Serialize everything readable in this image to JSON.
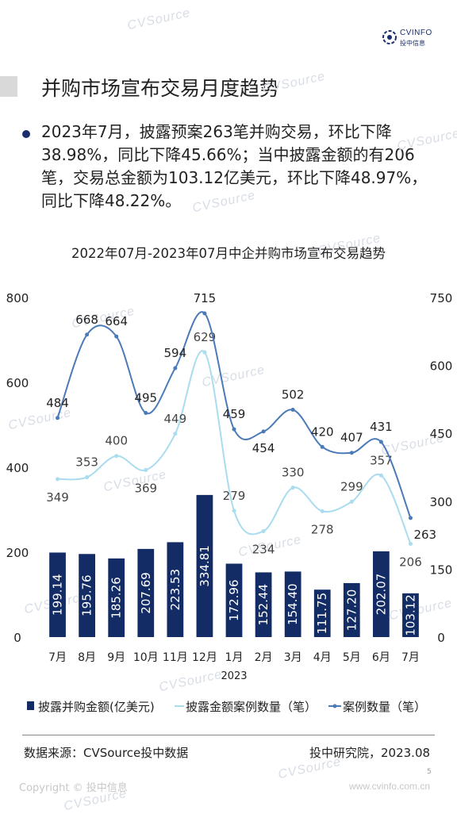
{
  "header": {
    "brand": "CVINFO",
    "brand_sub": "投中信息",
    "title": "并购市场宣布交易月度趋势"
  },
  "summary": {
    "text": "2023年7月，披露预案263笔并购交易，环比下降38.98%，同比下降45.66%；当中披露金额的有206笔，交易总金额为103.12亿美元，环比下降48.97%，同比下降48.22%。"
  },
  "watermark": "CVSource",
  "chart_data": {
    "type": "bar",
    "title": "2022年07月-2023年07月中企并购市场宣布交易趋势",
    "categories": [
      "7月",
      "8月",
      "9月",
      "10月",
      "11月",
      "12月",
      "1月",
      "2月",
      "3月",
      "4月",
      "5月",
      "6月",
      "7月"
    ],
    "year_label": "2023",
    "y_left": {
      "ticks": [
        "0",
        "200",
        "400",
        "600",
        "800"
      ],
      "range": [
        0,
        800
      ]
    },
    "y_right": {
      "ticks": [
        "0",
        "150",
        "300",
        "450",
        "600",
        "750"
      ],
      "range": [
        0,
        750
      ]
    },
    "series": [
      {
        "name": "披露并购金额(亿美元)",
        "type": "bar",
        "axis": "left",
        "color": "#132c66",
        "values": [
          199.14,
          195.76,
          185.26,
          207.69,
          223.53,
          334.81,
          172.96,
          152.44,
          154.4,
          111.75,
          127.2,
          202.07,
          103.12
        ],
        "labels": [
          "199.14",
          "195.76",
          "185.26",
          "207.69",
          "223.53",
          "334.81",
          "172.96",
          "152.44",
          "154.40",
          "111.75",
          "127.20",
          "202.07",
          "103.12"
        ]
      },
      {
        "name": "披露金额案例数量（笔）",
        "type": "line",
        "axis": "right",
        "color": "#a9dcef",
        "values": [
          349,
          353,
          400,
          369,
          449,
          629,
          279,
          234,
          330,
          278,
          299,
          357,
          206
        ]
      },
      {
        "name": "案例数量（笔）",
        "type": "line",
        "axis": "right",
        "color": "#4a7ab8",
        "values": [
          484,
          668,
          664,
          495,
          594,
          715,
          459,
          454,
          502,
          420,
          407,
          431,
          263
        ]
      }
    ],
    "legend": [
      "披露并购金额(亿美元)",
      "披露金额案例数量（笔）",
      "案例数量（笔）"
    ]
  },
  "footer": {
    "source": "数据来源：CVSource投中数据",
    "publisher": "投中研究院，2023.08",
    "copyright": "Copyright © 投中信息",
    "website": "www.cvinfo.com.cn",
    "page": "5"
  }
}
